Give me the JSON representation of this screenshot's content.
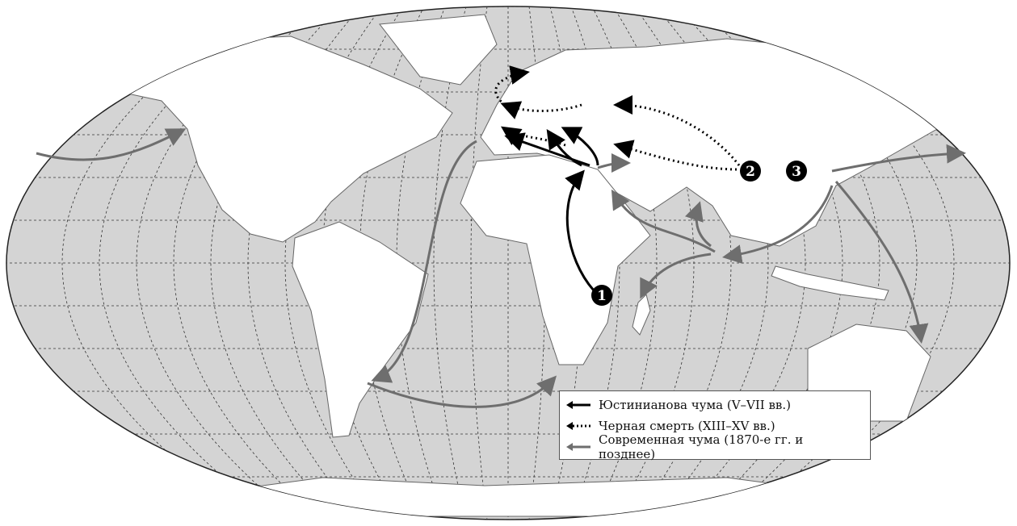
{
  "colors": {
    "ocean": "#d4d4d4",
    "land": "#ffffff",
    "justinian": "#000000",
    "black_death": "#000000",
    "modern": "#6e6e6e"
  },
  "markers": [
    {
      "label": "1",
      "wave": "Юстинианова чума"
    },
    {
      "label": "2",
      "wave": "Черная смерть"
    },
    {
      "label": "3",
      "wave": "Современная чума"
    }
  ],
  "legend": {
    "items": [
      {
        "label": "Юстинианова чума (V–VII вв.)",
        "style": "solid-black"
      },
      {
        "label": "Черная смерть (XIII–XV вв.)",
        "style": "dotted-black"
      },
      {
        "label": "Современная чума (1870-е гг. и позднее)",
        "style": "solid-gray"
      }
    ]
  }
}
